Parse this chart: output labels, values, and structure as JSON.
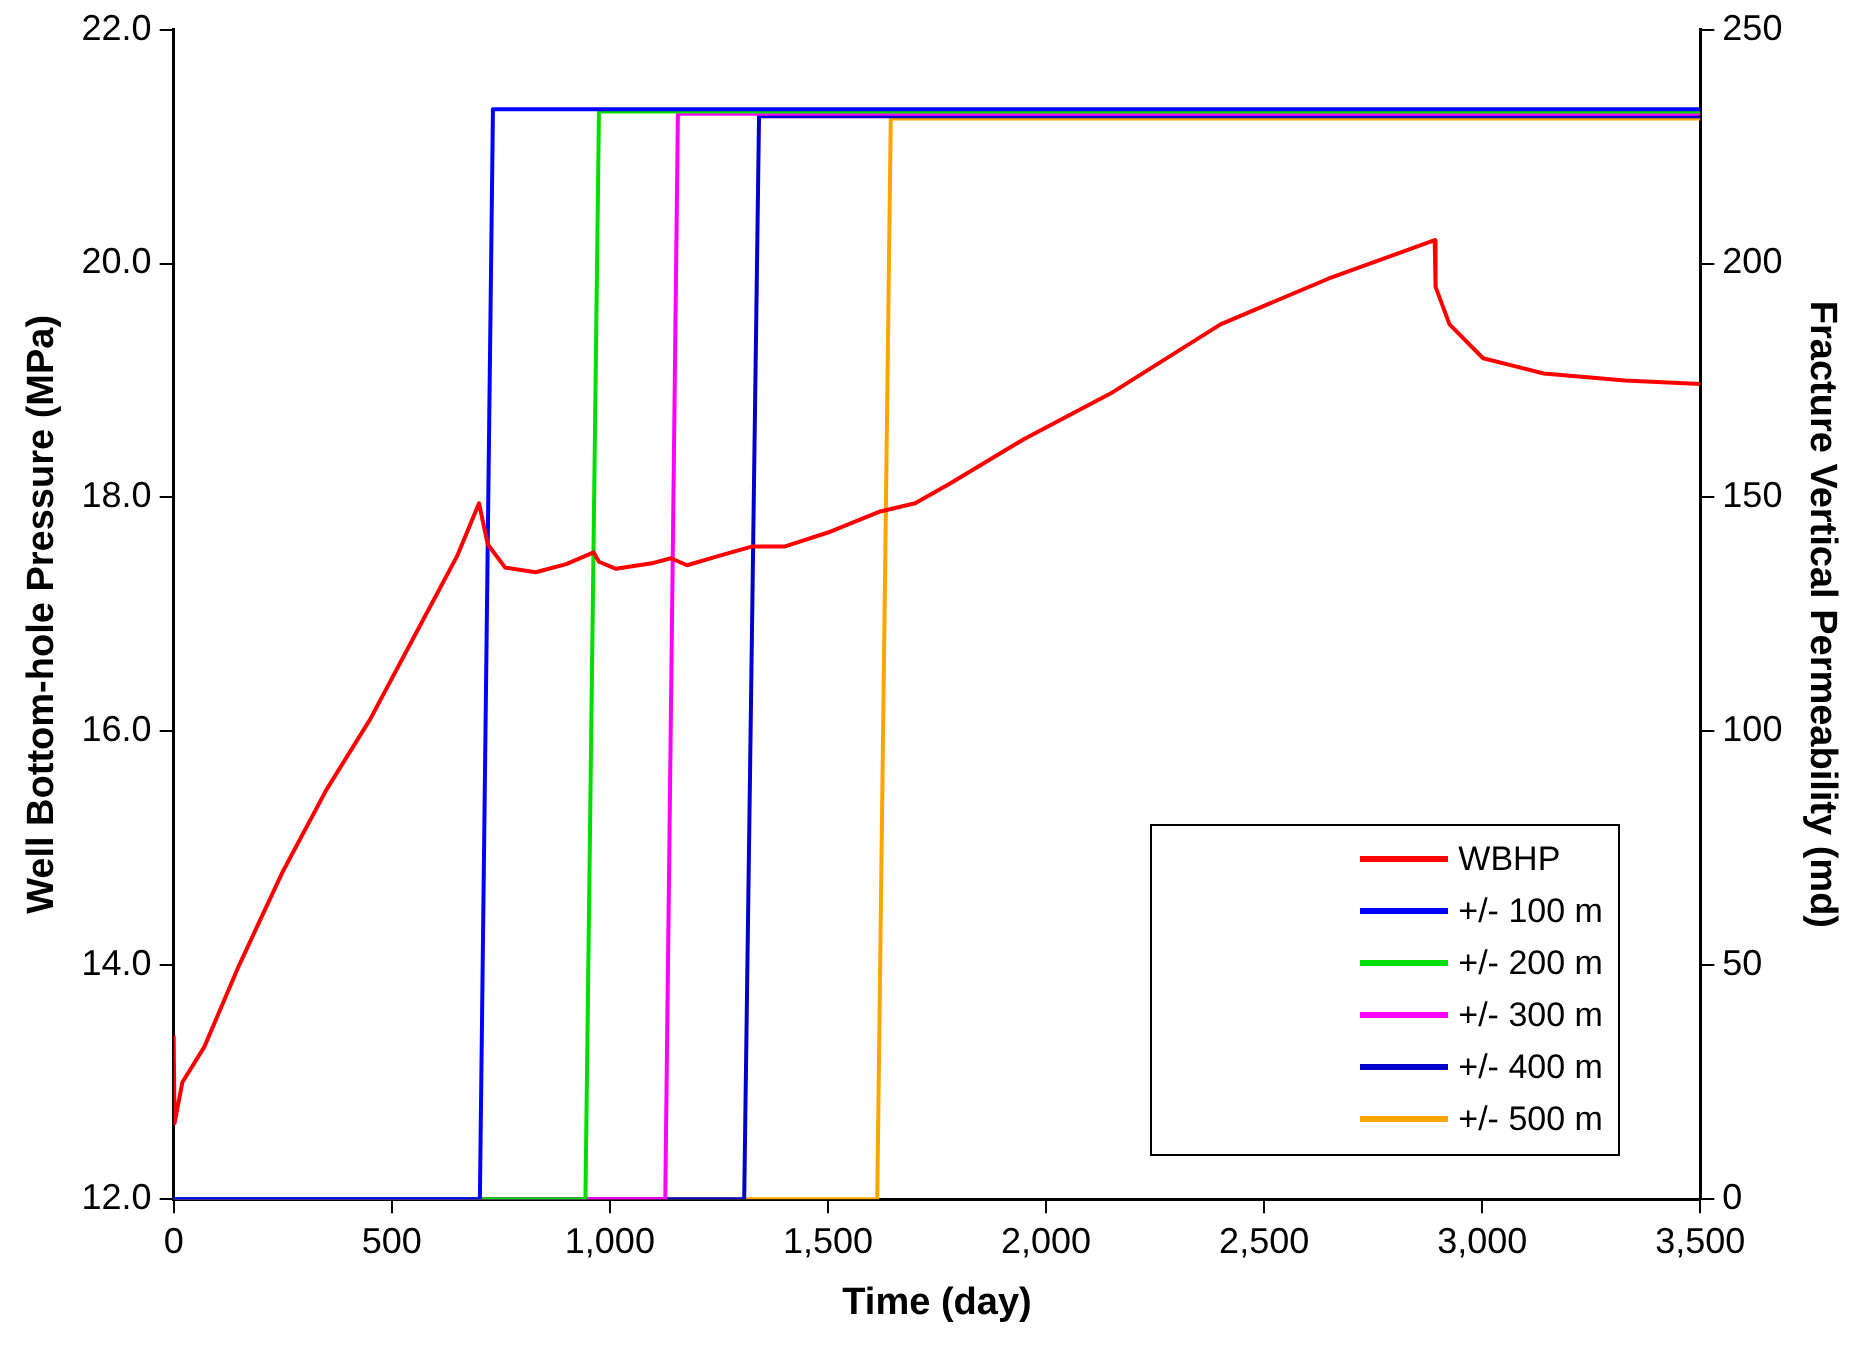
{
  "chart_data": {
    "type": "line",
    "xlabel": "Time (day)",
    "ylabel": "Well Bottom-hole Pressure (MPa)",
    "y2label": "Fracture Vertical Permeability (md)",
    "xlim": [
      0,
      3500
    ],
    "xticks": [
      0,
      500,
      {
        "value": 1000,
        "label": "1,000"
      },
      {
        "value": 1500,
        "label": "1,500"
      },
      {
        "value": 2000,
        "label": "2,000"
      },
      {
        "value": 2500,
        "label": "2,500"
      },
      {
        "value": 3000,
        "label": "3,000"
      },
      {
        "value": 3500,
        "label": "3,500"
      }
    ],
    "ylim": [
      12,
      22
    ],
    "yticks": [
      {
        "value": 12,
        "label": "12.0"
      },
      {
        "value": 14,
        "label": "14.0"
      },
      {
        "value": 16,
        "label": "16.0"
      },
      {
        "value": 18,
        "label": "18.0"
      },
      {
        "value": 20,
        "label": "20.0"
      },
      {
        "value": 22,
        "label": "22.0"
      }
    ],
    "y2lim": [
      0,
      250
    ],
    "y2ticks": [
      0,
      50,
      100,
      150,
      200,
      250
    ],
    "grid": false,
    "legend": "bottom right",
    "marker": "none",
    "line_style": "solid",
    "series": [
      {
        "name": "WBHP",
        "color": "#ff0000",
        "x": [
          0,
          2,
          20,
          70,
          150,
          250,
          350,
          450,
          550,
          650,
          700,
          720,
          760,
          830,
          900,
          963,
          975,
          1014,
          1100,
          1140,
          1177,
          1250,
          1325,
          1400,
          1500,
          1620,
          1700,
          1780,
          1950,
          2153,
          2400,
          2647,
          2891,
          2893,
          2925,
          3002,
          3141,
          3327,
          3500
        ],
        "values": [
          13.4,
          12.65,
          13.0,
          13.3,
          14.0,
          14.8,
          15.5,
          16.1,
          16.8,
          17.5,
          17.95,
          17.6,
          17.4,
          17.36,
          17.43,
          17.53,
          17.45,
          17.39,
          17.44,
          17.48,
          17.42,
          17.5,
          17.58,
          17.58,
          17.7,
          17.88,
          17.95,
          18.12,
          18.5,
          18.9,
          19.48,
          19.87,
          20.2,
          19.8,
          19.48,
          19.19,
          19.06,
          19.0,
          18.97
        ]
      },
      {
        "name": "+/- 100 m",
        "color": "#0000ff",
        "axis": "y2",
        "x": [
          0,
          702,
          732,
          3500
        ],
        "values": [
          0,
          0,
          233,
          233
        ]
      },
      {
        "name": "+/- 200 m",
        "color": "#00dd00",
        "axis": "y2",
        "x": [
          0,
          944,
          975,
          3500
        ],
        "values": [
          0,
          0,
          232.5,
          232.5
        ]
      },
      {
        "name": "+/- 300 m",
        "color": "#ff00ff",
        "axis": "y2",
        "x": [
          0,
          1127,
          1156,
          3500
        ],
        "values": [
          0,
          0,
          232,
          232
        ]
      },
      {
        "name": "+/- 400 m",
        "color": "#0000cc",
        "axis": "y2",
        "x": [
          0,
          1308,
          1342,
          3500
        ],
        "values": [
          0,
          0,
          231.5,
          231.5
        ]
      },
      {
        "name": "+/- 500 m",
        "color": "#ffa500",
        "axis": "y2",
        "x": [
          0,
          1613,
          1644,
          3500
        ],
        "values": [
          0,
          0,
          231,
          231
        ]
      }
    ]
  }
}
